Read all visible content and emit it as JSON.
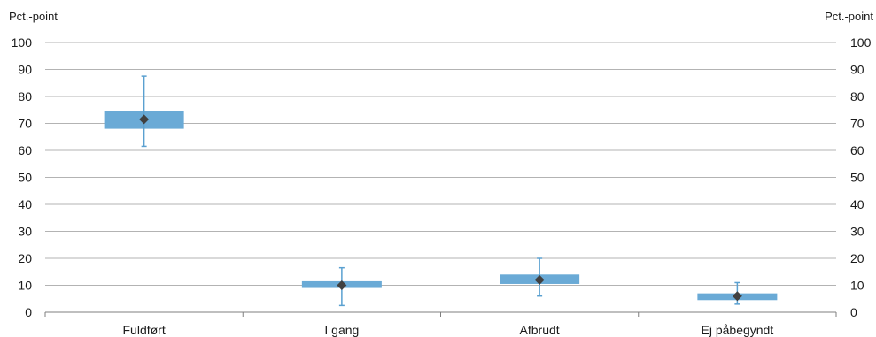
{
  "chart_data": {
    "type": "box",
    "categories": [
      "Fuldført",
      "I gang",
      "Afbrudt",
      "Ej påbegyndt"
    ],
    "series": [
      {
        "boxes": [
          {
            "low": 68,
            "high": 74.5
          },
          {
            "low": 9,
            "high": 11.5
          },
          {
            "low": 10.5,
            "high": 14
          },
          {
            "low": 4.5,
            "high": 7
          }
        ],
        "whiskers": [
          {
            "min": 61.5,
            "max": 87.5
          },
          {
            "min": 2.5,
            "max": 16.5
          },
          {
            "min": 6,
            "max": 20
          },
          {
            "min": 3,
            "max": 11
          }
        ],
        "markers": [
          71.5,
          10,
          12,
          6
        ]
      }
    ],
    "ylabel_left": "Pct.-point",
    "ylabel_right": "Pct.-point",
    "y_ticks": [
      "0",
      "10",
      "20",
      "30",
      "40",
      "50",
      "60",
      "70",
      "80",
      "90",
      "100"
    ],
    "ylim": [
      0,
      100
    ],
    "grid": true,
    "colors": {
      "box": "#6aaad6",
      "whisker": "#5aa0d0",
      "marker": "#404040",
      "grid": "#b3b3b3",
      "axis": "#7f7f7f"
    }
  }
}
